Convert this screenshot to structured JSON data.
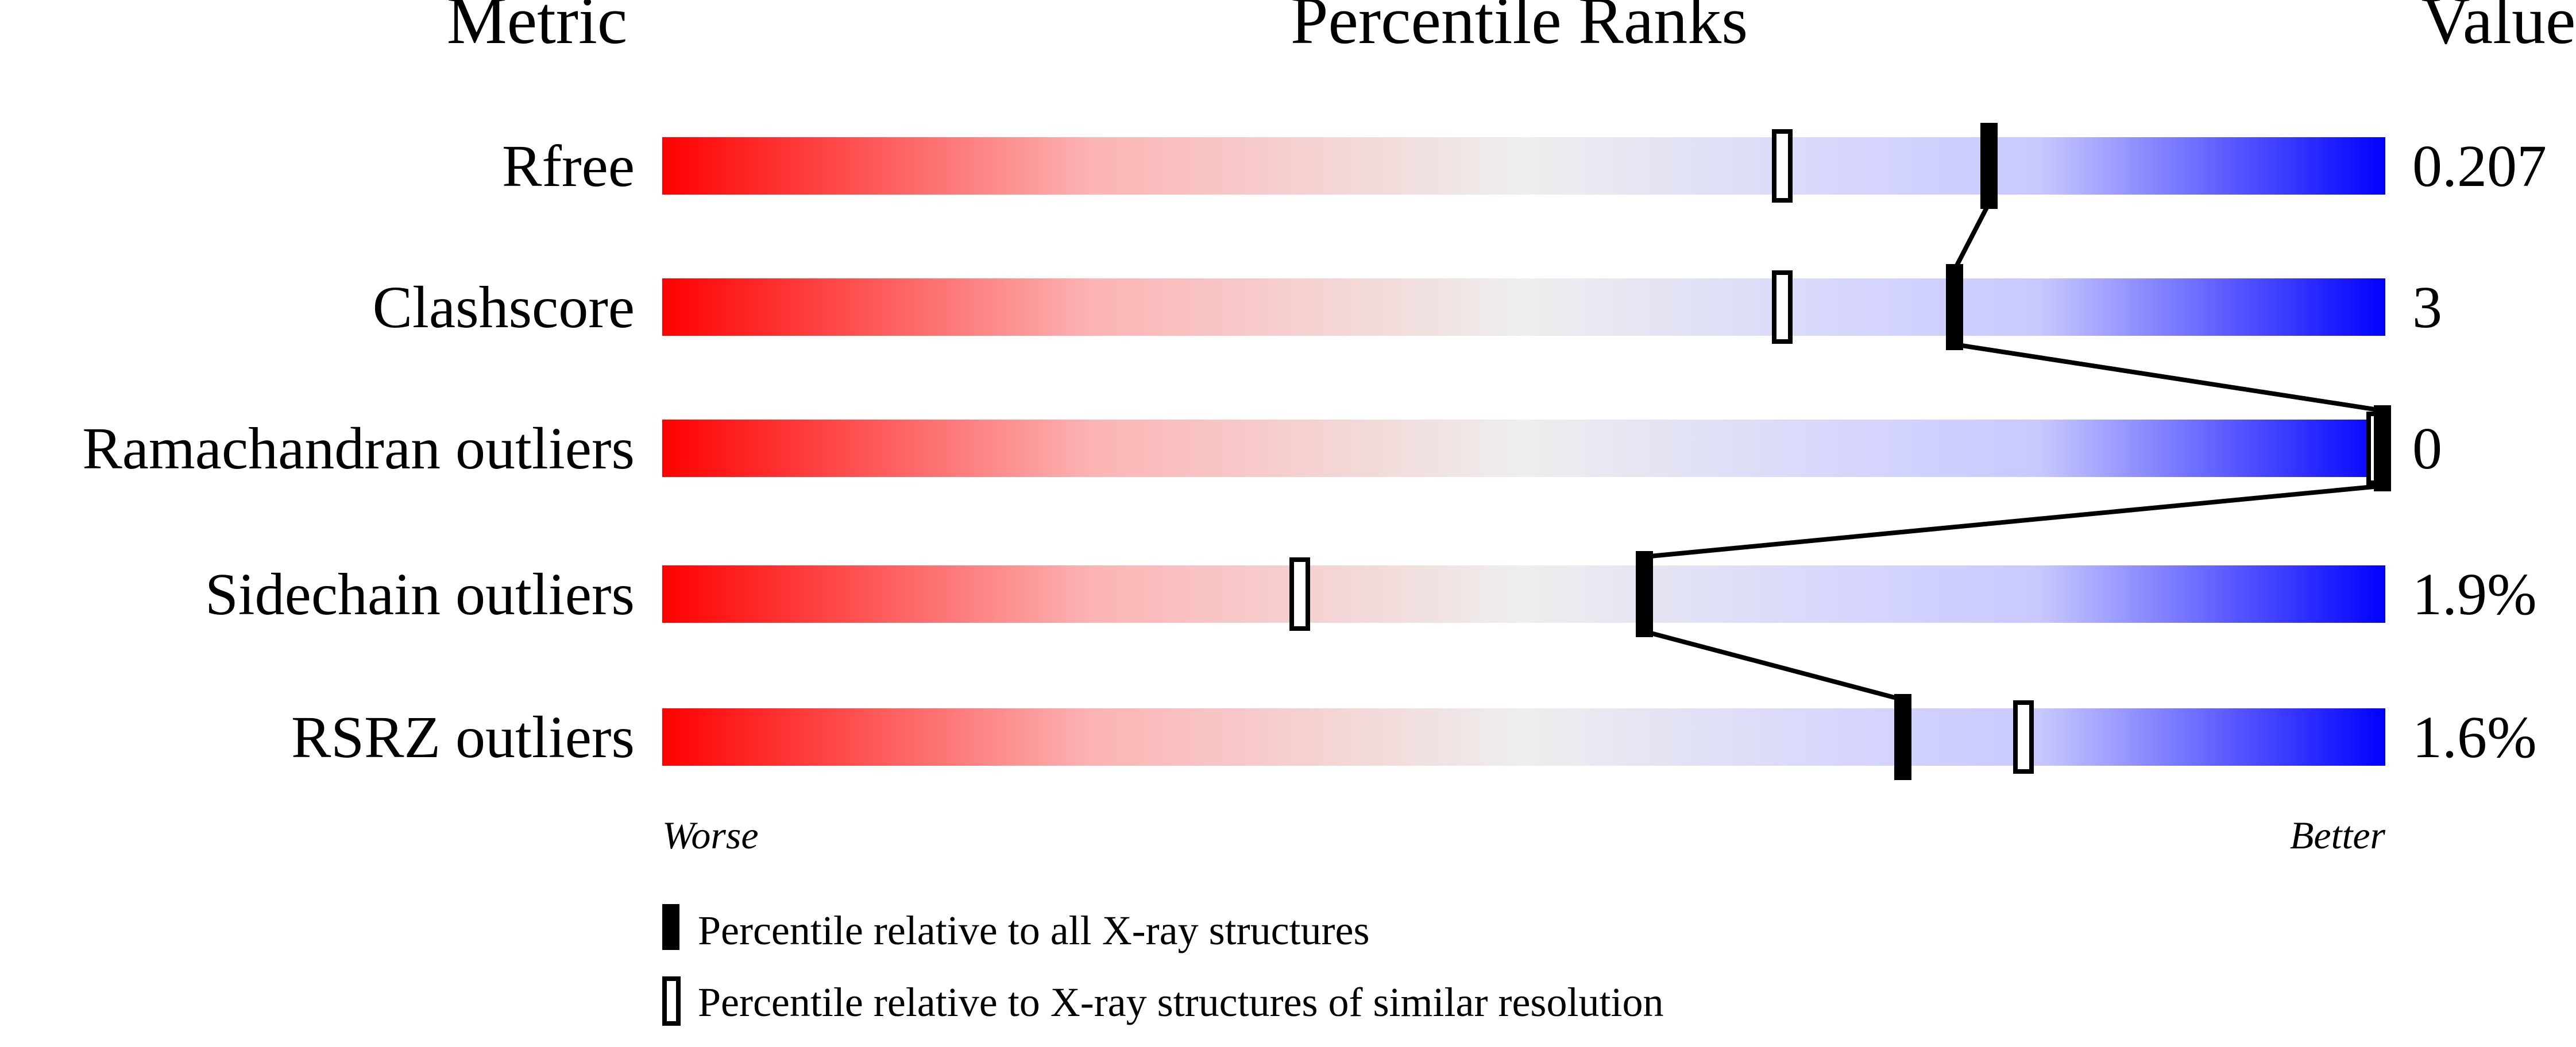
{
  "chart_data": {
    "type": "bar",
    "headers": {
      "metric": "Metric",
      "percentile": "Percentile Ranks",
      "value": "Value"
    },
    "xlim": [
      0,
      100
    ],
    "axis_labels": {
      "left": "Worse",
      "right": "Better"
    },
    "rows": [
      {
        "metric": "Rfree",
        "value": "0.207",
        "percentile_all": 77,
        "percentile_similar": 65
      },
      {
        "metric": "Clashscore",
        "value": "3",
        "percentile_all": 75,
        "percentile_similar": 65
      },
      {
        "metric": "Ramachandran outliers",
        "value": "0",
        "percentile_all": 100,
        "percentile_similar": 100
      },
      {
        "metric": "Sidechain outliers",
        "value": "1.9%",
        "percentile_all": 57,
        "percentile_similar": 37
      },
      {
        "metric": "RSRZ outliers",
        "value": "1.6%",
        "percentile_all": 72,
        "percentile_similar": 79
      }
    ],
    "legend": [
      {
        "marker": "filled",
        "label": "Percentile relative to all X-ray structures"
      },
      {
        "marker": "open",
        "label": "Percentile relative to X-ray structures of similar resolution"
      }
    ],
    "colors": {
      "worse": "#ff0000",
      "middle": "#eeeeee",
      "better": "#0000ff",
      "marker": "#000000"
    }
  }
}
